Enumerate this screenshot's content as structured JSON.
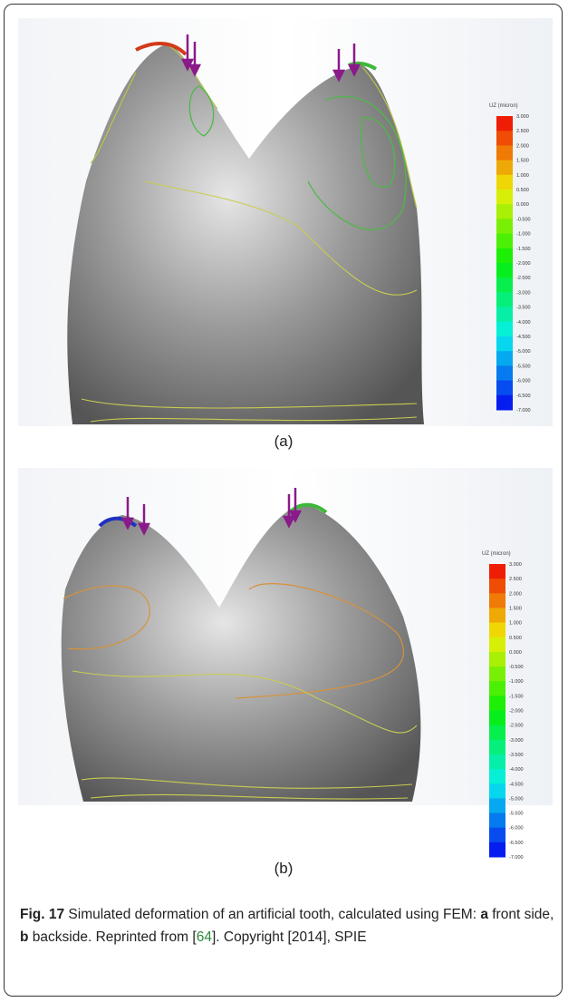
{
  "figure": {
    "panels": [
      {
        "label": "(a)",
        "colorbar": {
          "title": "UZ (micron)",
          "labels": [
            "3.000",
            "2.500",
            "2.000",
            "1.500",
            "1.000",
            "0.500",
            "0.000",
            "-0.500",
            "-1.000",
            "-1.500",
            "-2.000",
            "-2.500",
            "-3.000",
            "-3.500",
            "-4.000",
            "-4.500",
            "-5.000",
            "-5.500",
            "-6.000",
            "-6.500",
            "-7.000"
          ]
        }
      },
      {
        "label": "(b)",
        "colorbar": {
          "title": "UZ (micron)",
          "labels": [
            "3.000",
            "2.500",
            "2.000",
            "1.500",
            "1.000",
            "0.500",
            "0.000",
            "-0.500",
            "-1.000",
            "-1.500",
            "-2.000",
            "-2.500",
            "-3.000",
            "-3.500",
            "-4.000",
            "-4.500",
            "-5.000",
            "-5.500",
            "-6.000",
            "-6.500",
            "-7.000"
          ]
        }
      }
    ]
  },
  "caption": {
    "label": "Fig. 17",
    "text1": " Simulated deformation of an artificial tooth, calculated using FEM: ",
    "a": "a",
    "text2": " front side, ",
    "b": "b",
    "text3": " backside. Reprinted from [",
    "ref": "64",
    "text4": "]. Copyright [2014], SPIE"
  }
}
